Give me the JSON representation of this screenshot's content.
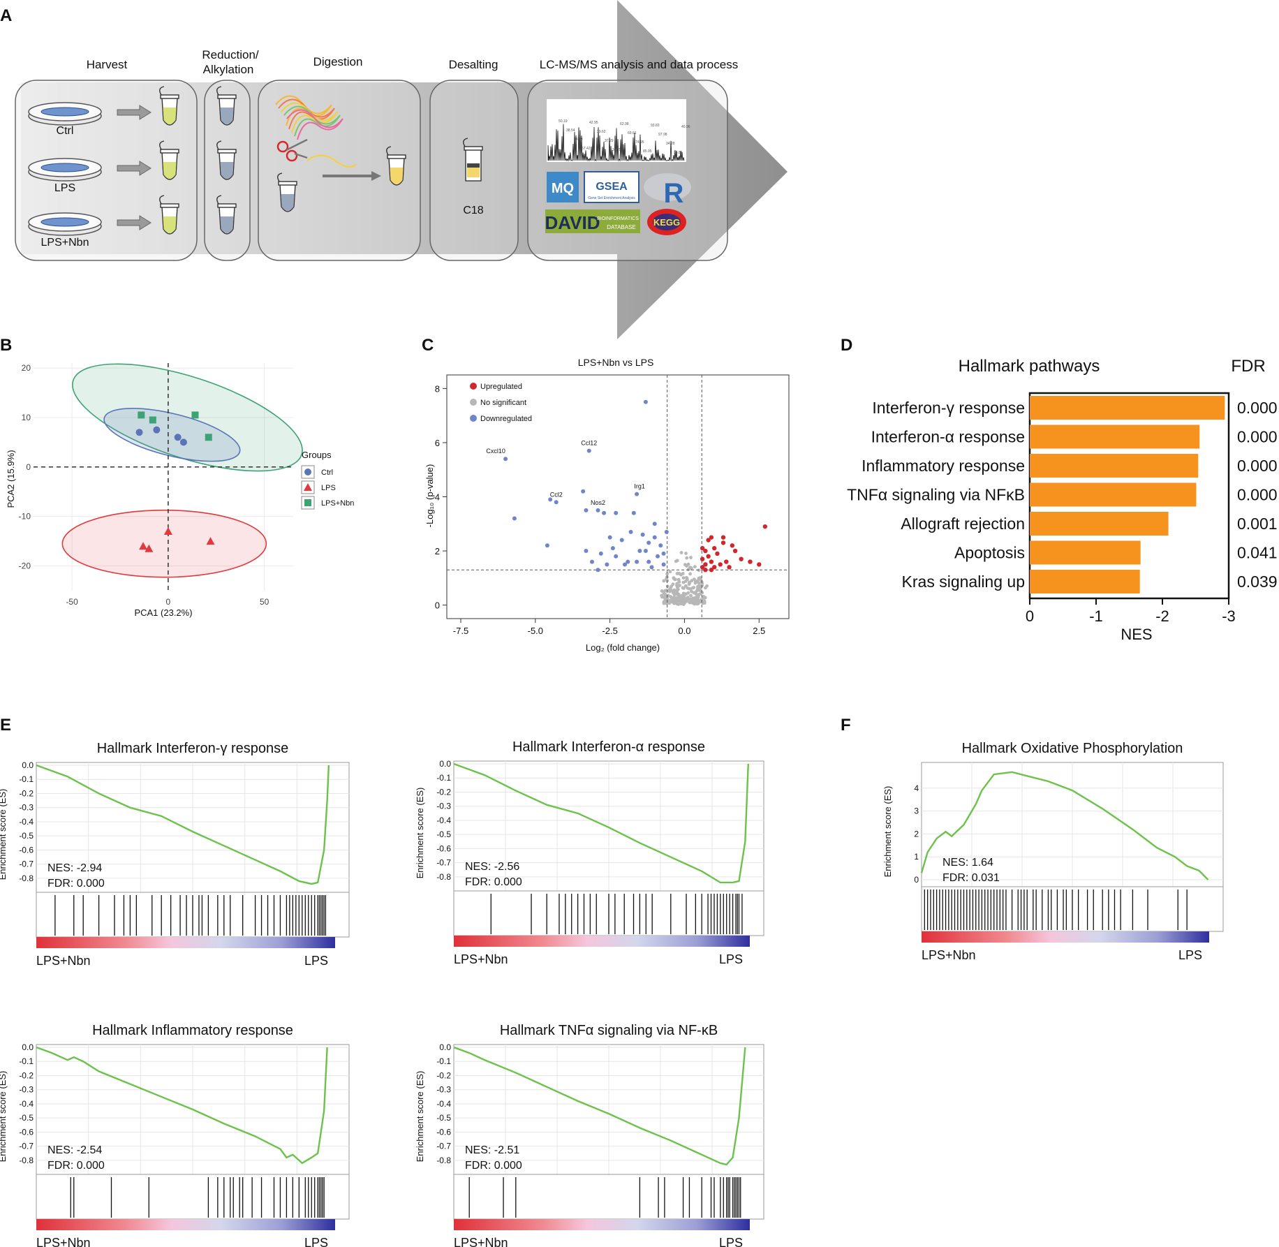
{
  "panels": {
    "A": {
      "label": "A",
      "steps": [
        "Harvest",
        "Reduction/",
        "Alkylation",
        "Digestion",
        "Desalting",
        "LC-MS/MS analysis and data process"
      ],
      "samples": [
        "Ctrl",
        "LPS",
        "LPS+Nbn"
      ],
      "column": "C18",
      "peaks": [
        "50.19",
        "38.54",
        "44.19",
        "57.42",
        "42.95",
        "39.62",
        "37.29",
        "35.25",
        "62.98",
        "69.61",
        "74.95",
        "85.95",
        "93.83",
        "97.98",
        "34.28",
        "36.81",
        "40.96"
      ],
      "logos": [
        "MQ",
        "GSEA",
        "Gene Set Enrichment Analysis",
        "R",
        "DAVID",
        "BIOINFORMATICS",
        "DATABASE",
        "KEGG"
      ]
    },
    "B": {
      "label": "B",
      "xlabel": "PCA1 (23.2%)",
      "ylabel": "PCA2 (15.9%)",
      "legend_title": "Groups",
      "legend": [
        "Ctrl",
        "LPS",
        "LPS+Nbn"
      ],
      "colors": {
        "Ctrl": "#5b74b8",
        "LPS": "#e0393e",
        "LPS+Nbn": "#3da374"
      },
      "chart_data": {
        "type": "scatter",
        "xlim": [
          -70,
          65
        ],
        "ylim": [
          -25,
          21
        ],
        "xticks": [
          -50,
          0,
          50
        ],
        "yticks": [
          20,
          10,
          0,
          -10,
          -20
        ],
        "series": [
          {
            "name": "Ctrl",
            "marker": "circle",
            "points": [
              [
                -15,
                7
              ],
              [
                -6,
                7.5
              ],
              [
                5,
                6
              ],
              [
                8,
                5
              ]
            ]
          },
          {
            "name": "LPS",
            "marker": "triangle",
            "points": [
              [
                -13,
                -16
              ],
              [
                -10,
                -16.5
              ],
              [
                0,
                -13
              ],
              [
                22,
                -15
              ]
            ]
          },
          {
            "name": "LPS+Nbn",
            "marker": "square",
            "points": [
              [
                -14,
                10.5
              ],
              [
                -8,
                9.5
              ],
              [
                14,
                10.5
              ],
              [
                21,
                6
              ]
            ]
          }
        ]
      }
    },
    "C": {
      "label": "C",
      "title": "LPS+Nbn vs LPS",
      "xlabel": "Log₂ (fold change)",
      "ylabel": "-Log₁₀ (p-value)",
      "legend": [
        "Upregulated",
        "No significant",
        "Downregulated"
      ],
      "colors": {
        "up": "#d0272f",
        "ns": "#b7b7b7",
        "down": "#6e86c8"
      },
      "chart_data": {
        "type": "scatter",
        "xlim": [
          -7.5,
          3.5
        ],
        "ylim": [
          -0.5,
          8.5
        ],
        "xticks": [
          -7.5,
          -5.0,
          -2.5,
          0.0,
          2.5
        ],
        "yticks": [
          0,
          2,
          4,
          6,
          8
        ],
        "thresholds": {
          "x": [
            -0.58,
            0.58
          ],
          "y": 1.3
        },
        "labels": [
          {
            "text": "Cxcl10",
            "x": -6.0,
            "y": 5.4
          },
          {
            "text": "Ccl12",
            "x": -3.2,
            "y": 5.7
          },
          {
            "text": "Ccl2",
            "x": -4.3,
            "y": 3.8
          },
          {
            "text": "Irg1",
            "x": -1.6,
            "y": 4.1
          },
          {
            "text": "Nos2",
            "x": -2.9,
            "y": 3.5
          }
        ],
        "down": [
          [
            -6.0,
            5.4
          ],
          [
            -3.2,
            5.7
          ],
          [
            -1.3,
            7.5
          ],
          [
            -4.3,
            3.8
          ],
          [
            -1.6,
            4.1
          ],
          [
            -2.9,
            3.5
          ],
          [
            -5.7,
            3.2
          ],
          [
            -4.5,
            3.9
          ],
          [
            -3.4,
            4.2
          ],
          [
            -3.3,
            3.5
          ],
          [
            -2.7,
            3.4
          ],
          [
            -4.6,
            2.2
          ],
          [
            -3.3,
            2.0
          ],
          [
            -2.3,
            3.4
          ],
          [
            -1.7,
            3.4
          ],
          [
            -1.0,
            3.0
          ],
          [
            -2.5,
            2.5
          ],
          [
            -2.1,
            2.4
          ],
          [
            -1.4,
            2.6
          ],
          [
            -1.2,
            2.3
          ],
          [
            -1.0,
            2.5
          ],
          [
            -0.8,
            2.2
          ],
          [
            -2.8,
            1.9
          ],
          [
            -2.3,
            1.8
          ],
          [
            -1.9,
            1.6
          ],
          [
            -1.5,
            2.0
          ],
          [
            -1.2,
            1.6
          ],
          [
            -0.9,
            1.8
          ],
          [
            -0.7,
            1.5
          ],
          [
            -3.1,
            1.6
          ],
          [
            -2.6,
            1.5
          ],
          [
            -2.0,
            1.5
          ],
          [
            -1.6,
            1.6
          ],
          [
            -1.1,
            1.4
          ],
          [
            -0.7,
            1.9
          ],
          [
            -2.9,
            1.3
          ],
          [
            -0.6,
            2.7
          ],
          [
            -1.8,
            2.7
          ],
          [
            -2.4,
            2.1
          ],
          [
            -1.3,
            2.0
          ]
        ],
        "up": [
          [
            2.7,
            2.9
          ],
          [
            0.9,
            2.5
          ],
          [
            1.3,
            2.3
          ],
          [
            1.6,
            2.2
          ],
          [
            2.2,
            1.6
          ],
          [
            0.7,
            2.0
          ],
          [
            1.0,
            2.1
          ],
          [
            0.8,
            1.8
          ],
          [
            1.1,
            1.9
          ],
          [
            1.4,
            1.6
          ],
          [
            1.7,
            2.0
          ],
          [
            1.9,
            1.7
          ],
          [
            0.7,
            1.5
          ],
          [
            0.9,
            1.6
          ],
          [
            1.2,
            1.5
          ],
          [
            0.6,
            1.7
          ],
          [
            2.5,
            1.5
          ],
          [
            0.6,
            2.1
          ],
          [
            0.8,
            2.4
          ],
          [
            1.0,
            1.4
          ],
          [
            1.5,
            1.4
          ],
          [
            0.7,
            1.3
          ],
          [
            0.9,
            1.3
          ],
          [
            1.3,
            2.5
          ],
          [
            0.6,
            1.4
          ]
        ]
      }
    },
    "D": {
      "label": "D",
      "title": "Hallmark pathways",
      "fdr_header": "FDR",
      "xlabel": "NES",
      "bar_color": "#f6921e",
      "chart_data": {
        "type": "bar",
        "orientation": "horizontal",
        "categories": [
          "Interferon-γ response",
          "Interferon-α response",
          "Inflammatory response",
          "TNFα signaling via NFκB",
          "Allograft rejection",
          "Apoptosis",
          "Kras signaling up"
        ],
        "values": [
          -2.94,
          -2.56,
          -2.54,
          -2.51,
          -2.09,
          -1.67,
          -1.66
        ],
        "fdr": [
          "0.000",
          "0.000",
          "0.000",
          "0.000",
          "0.001",
          "0.041",
          "0.039"
        ],
        "xlim": [
          0,
          -3
        ],
        "xticks": [
          "0",
          "-1",
          "-2",
          "-3"
        ]
      }
    },
    "E": {
      "label": "E",
      "ylabel": "Enrichment score (ES)",
      "left_label": "LPS+Nbn",
      "right_label": "LPS",
      "line_color": "#6cc24a",
      "plots": [
        {
          "title": "Hallmark Interferon-γ response",
          "nes": "NES: -2.94",
          "fdr": "FDR: 0.000",
          "yticks": [
            "0.0",
            "-0.1",
            "-0.2",
            "-0.3",
            "-0.4",
            "-0.5",
            "-0.6",
            "-0.7",
            "-0.8"
          ],
          "chart_data": {
            "type": "line",
            "ylim": [
              -0.85,
              0.0
            ],
            "x": [
              0,
              0.05,
              0.1,
              0.2,
              0.3,
              0.4,
              0.5,
              0.6,
              0.7,
              0.78,
              0.84,
              0.88,
              0.9,
              0.92,
              0.93,
              0.935
            ],
            "y": [
              0,
              -0.04,
              -0.08,
              -0.2,
              -0.3,
              -0.36,
              -0.47,
              -0.57,
              -0.67,
              -0.75,
              -0.82,
              -0.84,
              -0.83,
              -0.6,
              -0.25,
              0
            ]
          },
          "hits": [
            0.06,
            0.12,
            0.15,
            0.2,
            0.25,
            0.28,
            0.3,
            0.32,
            0.37,
            0.4,
            0.43,
            0.46,
            0.48,
            0.5,
            0.52,
            0.53,
            0.55,
            0.58,
            0.6,
            0.62,
            0.66,
            0.7,
            0.72,
            0.74,
            0.76,
            0.78,
            0.8,
            0.81,
            0.82,
            0.83,
            0.84,
            0.85,
            0.86,
            0.87,
            0.88,
            0.89,
            0.9,
            0.905,
            0.91,
            0.915,
            0.92,
            0.925
          ]
        },
        {
          "title": "Hallmark Interferon-α response",
          "nes": "NES: -2.56",
          "fdr": "FDR: 0.000",
          "yticks": [
            "0.0",
            "-0.1",
            "-0.2",
            "-0.3",
            "-0.4",
            "-0.5",
            "-0.6",
            "-0.7",
            "-0.8"
          ],
          "chart_data": {
            "type": "line",
            "ylim": [
              -0.85,
              0.0
            ],
            "x": [
              0,
              0.05,
              0.1,
              0.2,
              0.3,
              0.4,
              0.5,
              0.6,
              0.7,
              0.8,
              0.86,
              0.9,
              0.92,
              0.94,
              0.95
            ],
            "y": [
              0,
              -0.04,
              -0.08,
              -0.19,
              -0.29,
              -0.35,
              -0.45,
              -0.56,
              -0.66,
              -0.76,
              -0.84,
              -0.84,
              -0.83,
              -0.55,
              0
            ]
          },
          "hits": [
            0.12,
            0.25,
            0.3,
            0.34,
            0.36,
            0.38,
            0.4,
            0.42,
            0.44,
            0.46,
            0.5,
            0.52,
            0.55,
            0.58,
            0.6,
            0.62,
            0.64,
            0.7,
            0.75,
            0.78,
            0.8,
            0.82,
            0.83,
            0.84,
            0.85,
            0.86,
            0.87,
            0.88,
            0.89,
            0.9,
            0.91,
            0.915,
            0.92,
            0.93
          ]
        },
        {
          "title": "Hallmark Inflammatory response",
          "nes": "NES: -2.54",
          "fdr": "FDR: 0.000",
          "yticks": [
            "0.0",
            "-0.1",
            "-0.2",
            "-0.3",
            "-0.4",
            "-0.5",
            "-0.6",
            "-0.7",
            "-0.8"
          ],
          "chart_data": {
            "type": "line",
            "ylim": [
              -0.85,
              0.0
            ],
            "x": [
              0,
              0.05,
              0.1,
              0.12,
              0.15,
              0.2,
              0.3,
              0.4,
              0.5,
              0.6,
              0.7,
              0.78,
              0.8,
              0.82,
              0.85,
              0.88,
              0.9,
              0.92,
              0.93
            ],
            "y": [
              0,
              -0.04,
              -0.09,
              -0.07,
              -0.1,
              -0.17,
              -0.26,
              -0.35,
              -0.44,
              -0.54,
              -0.63,
              -0.72,
              -0.78,
              -0.76,
              -0.82,
              -0.78,
              -0.75,
              -0.45,
              0
            ]
          },
          "hits": [
            0.11,
            0.12,
            0.24,
            0.36,
            0.55,
            0.58,
            0.6,
            0.62,
            0.63,
            0.65,
            0.66,
            0.69,
            0.72,
            0.76,
            0.78,
            0.8,
            0.82,
            0.84,
            0.86,
            0.87,
            0.88,
            0.89,
            0.9,
            0.905,
            0.91,
            0.915,
            0.92
          ]
        },
        {
          "title": "Hallmark TNFα signaling via NF-κB",
          "nes": "NES: -2.51",
          "fdr": "FDR: 0.000",
          "yticks": [
            "0.0",
            "-0.1",
            "-0.2",
            "-0.3",
            "-0.4",
            "-0.5",
            "-0.6",
            "-0.7",
            "-0.8"
          ],
          "chart_data": {
            "type": "line",
            "ylim": [
              -0.85,
              0.0
            ],
            "x": [
              0,
              0.05,
              0.1,
              0.2,
              0.3,
              0.4,
              0.5,
              0.6,
              0.7,
              0.78,
              0.82,
              0.86,
              0.88,
              0.9,
              0.92,
              0.94
            ],
            "y": [
              0,
              -0.04,
              -0.09,
              -0.18,
              -0.28,
              -0.38,
              -0.47,
              -0.57,
              -0.66,
              -0.74,
              -0.78,
              -0.82,
              -0.83,
              -0.78,
              -0.5,
              0
            ]
          },
          "hits": [
            0.05,
            0.16,
            0.2,
            0.6,
            0.66,
            0.68,
            0.74,
            0.76,
            0.8,
            0.83,
            0.84,
            0.86,
            0.87,
            0.88,
            0.885,
            0.89,
            0.9,
            0.905,
            0.91,
            0.915,
            0.92,
            0.925
          ]
        }
      ]
    },
    "F": {
      "label": "F",
      "ylabel": "Enrichment score (ES)",
      "left_label": "LPS+Nbn",
      "right_label": "LPS",
      "title": "Hallmark Oxidative Phosphorylation",
      "nes": "NES: 1.64",
      "fdr": "FDR: 0.031",
      "yticks": [
        "4",
        "3",
        "2",
        "1",
        "0"
      ],
      "chart_data": {
        "type": "line",
        "ylim": [
          0,
          5
        ],
        "x": [
          0,
          0.02,
          0.05,
          0.08,
          0.1,
          0.14,
          0.18,
          0.2,
          0.24,
          0.3,
          0.36,
          0.42,
          0.5,
          0.6,
          0.7,
          0.78,
          0.84,
          0.88,
          0.92,
          0.95
        ],
        "y": [
          0.3,
          1.2,
          1.8,
          2.1,
          1.9,
          2.4,
          3.3,
          3.9,
          4.6,
          4.7,
          4.5,
          4.3,
          3.9,
          3.1,
          2.2,
          1.4,
          1.0,
          0.6,
          0.4,
          0.0
        ]
      },
      "hits": [
        0.01,
        0.02,
        0.03,
        0.04,
        0.05,
        0.06,
        0.07,
        0.08,
        0.09,
        0.1,
        0.11,
        0.12,
        0.13,
        0.14,
        0.15,
        0.16,
        0.17,
        0.18,
        0.19,
        0.2,
        0.21,
        0.22,
        0.23,
        0.24,
        0.25,
        0.26,
        0.27,
        0.28,
        0.3,
        0.32,
        0.33,
        0.34,
        0.35,
        0.37,
        0.38,
        0.4,
        0.42,
        0.43,
        0.45,
        0.47,
        0.48,
        0.5,
        0.52,
        0.55,
        0.57,
        0.6,
        0.62,
        0.64,
        0.66,
        0.7,
        0.75,
        0.85,
        0.88
      ]
    }
  }
}
